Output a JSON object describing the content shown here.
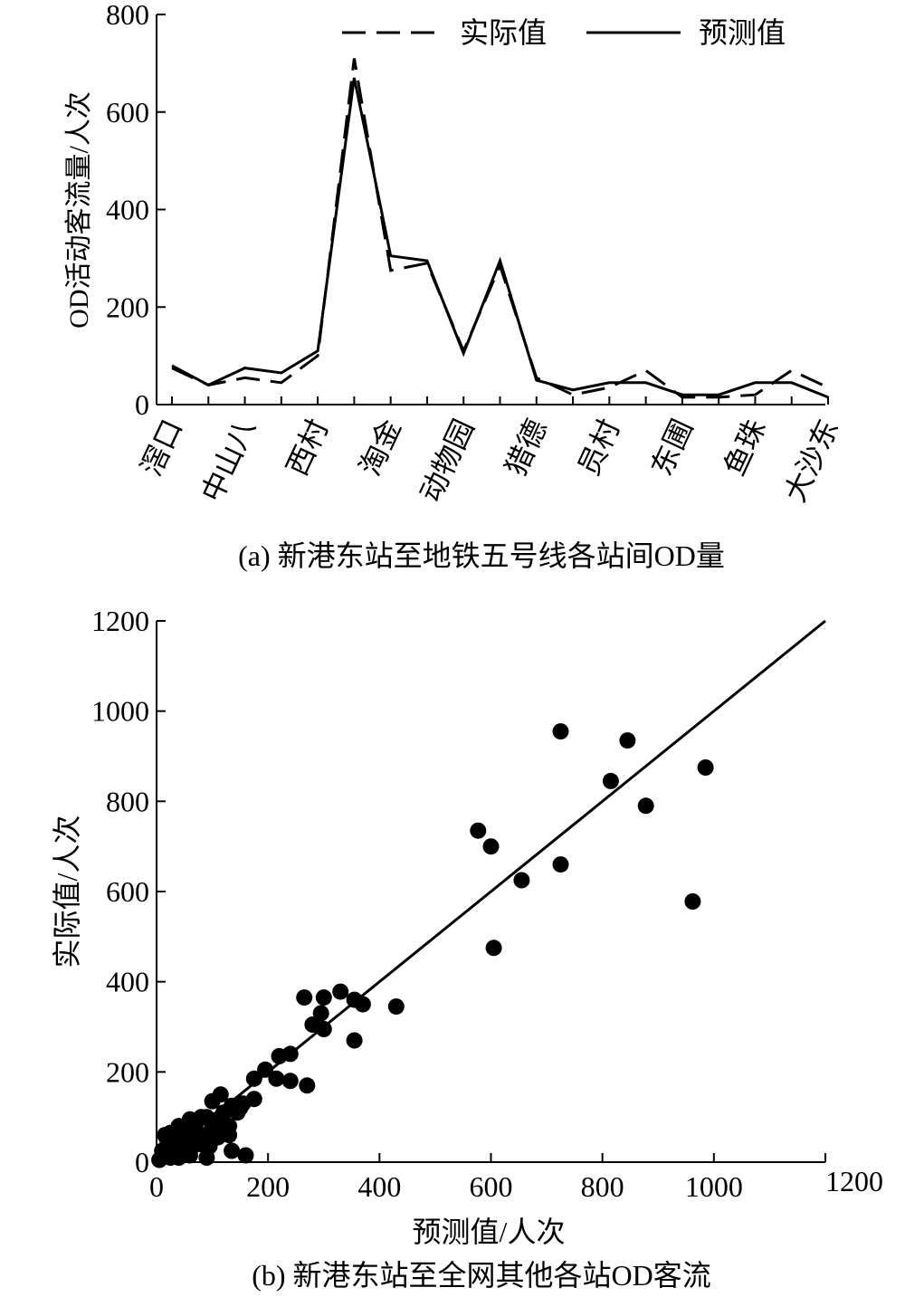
{
  "chart_data": [
    {
      "type": "line",
      "caption": "(a) 新港东站至地铁五号线各站间OD量",
      "ylabel": "OD活动客流量/人次",
      "xlabel": "",
      "ylim": [
        0,
        800
      ],
      "yticks": [
        0,
        200,
        400,
        600,
        800
      ],
      "grid": false,
      "legend_position": "top-right",
      "category_labels": [
        "滘口",
        "中山八",
        "西村",
        "淘金",
        "动物园",
        "猎德",
        "员村",
        "东圃",
        "鱼珠",
        "大沙东"
      ],
      "series": [
        {
          "name": "实际值",
          "style": "dashed",
          "values": [
            75,
            40,
            55,
            45,
            100,
            710,
            275,
            290,
            110,
            285,
            55,
            20,
            35,
            70,
            15,
            15,
            20,
            70,
            35
          ]
        },
        {
          "name": "预测值",
          "style": "solid",
          "values": [
            80,
            40,
            75,
            65,
            110,
            670,
            305,
            295,
            105,
            295,
            50,
            30,
            45,
            45,
            20,
            20,
            45,
            45,
            15
          ]
        }
      ]
    },
    {
      "type": "scatter",
      "caption": "(b) 新港东站至全网其他各站OD客流",
      "xlabel": "预测值/人次",
      "ylabel": "实际值/人次",
      "xlim": [
        0,
        1200
      ],
      "ylim": [
        0,
        1200
      ],
      "xticks": [
        0,
        200,
        400,
        600,
        800,
        1000,
        1200
      ],
      "yticks": [
        0,
        200,
        400,
        600,
        800,
        1000,
        1200
      ],
      "grid": false,
      "trend_line": [
        [
          0,
          0
        ],
        [
          1200,
          1200
        ]
      ],
      "points": [
        [
          725,
          955
        ],
        [
          845,
          935
        ],
        [
          985,
          875
        ],
        [
          815,
          845
        ],
        [
          878,
          790
        ],
        [
          577,
          735
        ],
        [
          600,
          700
        ],
        [
          725,
          660
        ],
        [
          655,
          625
        ],
        [
          962,
          578
        ],
        [
          605,
          475
        ],
        [
          330,
          378
        ],
        [
          265,
          365
        ],
        [
          300,
          365
        ],
        [
          355,
          360
        ],
        [
          370,
          350
        ],
        [
          430,
          345
        ],
        [
          295,
          330
        ],
        [
          280,
          305
        ],
        [
          300,
          295
        ],
        [
          355,
          270
        ],
        [
          240,
          240
        ],
        [
          220,
          235
        ],
        [
          195,
          205
        ],
        [
          215,
          185
        ],
        [
          175,
          185
        ],
        [
          240,
          180
        ],
        [
          270,
          170
        ],
        [
          175,
          140
        ],
        [
          155,
          130
        ],
        [
          115,
          150
        ],
        [
          100,
          135
        ],
        [
          135,
          125
        ],
        [
          145,
          110
        ],
        [
          120,
          110
        ],
        [
          90,
          100
        ],
        [
          110,
          95
        ],
        [
          80,
          100
        ],
        [
          130,
          80
        ],
        [
          100,
          80
        ],
        [
          60,
          95
        ],
        [
          70,
          85
        ],
        [
          40,
          80
        ],
        [
          25,
          65
        ],
        [
          15,
          60
        ],
        [
          55,
          70
        ],
        [
          85,
          60
        ],
        [
          110,
          55
        ],
        [
          75,
          55
        ],
        [
          45,
          50
        ],
        [
          20,
          45
        ],
        [
          35,
          40
        ],
        [
          65,
          35
        ],
        [
          95,
          35
        ],
        [
          30,
          25
        ],
        [
          50,
          25
        ],
        [
          10,
          25
        ],
        [
          60,
          15
        ],
        [
          135,
          25
        ],
        [
          160,
          15
        ],
        [
          90,
          10
        ],
        [
          10,
          10
        ],
        [
          5,
          5
        ],
        [
          25,
          10
        ],
        [
          40,
          10
        ],
        [
          20,
          30
        ],
        [
          70,
          65
        ],
        [
          105,
          70
        ],
        [
          130,
          60
        ],
        [
          150,
          120
        ],
        [
          50,
          55
        ],
        [
          80,
          40
        ],
        [
          120,
          90
        ]
      ]
    }
  ]
}
